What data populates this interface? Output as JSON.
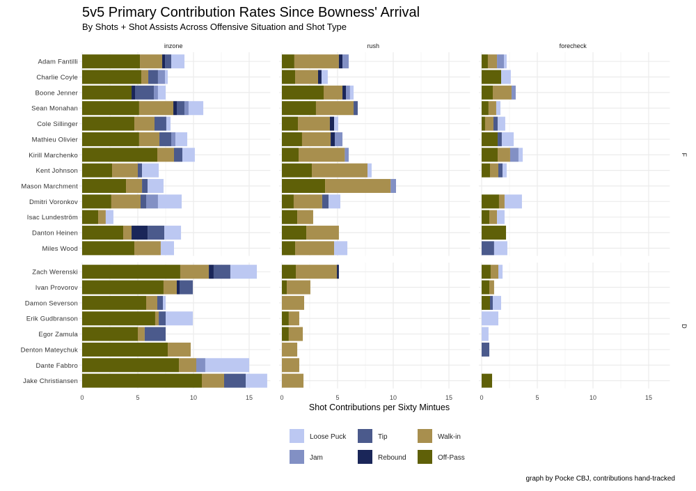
{
  "chart_data": {
    "type": "bar",
    "orientation": "horizontal",
    "stacked": true,
    "title": "5v5 Primary Contribution Rates Since Bowness' Arrival",
    "subtitle": "By Shots + Shot Assists Across Offensive Situation and Shot Type",
    "xlabel": "Shot Contributions per Sixty Mintues",
    "caption": "graph by Pocke CBJ, contributions hand-tracked",
    "xlim": [
      0,
      16.9
    ],
    "x_ticks": [
      "0",
      "5",
      "10",
      "15"
    ],
    "x_tick_values": [
      0,
      5,
      10,
      15
    ],
    "grid": true,
    "legend_position": "bottom",
    "panels": [
      "inzone",
      "rush",
      "forecheck"
    ],
    "segment_order": [
      "Off-Pass",
      "Walk-in",
      "Rebound",
      "Tip",
      "Jam",
      "Loose Puck"
    ],
    "colors": {
      "Off-Pass": "#5f6008",
      "Walk-in": "#a88f4e",
      "Rebound": "#1a2659",
      "Tip": "#4b5a8c",
      "Jam": "#8290c4",
      "Loose Puck": "#bcc8f2"
    },
    "legend": [
      "Loose Puck",
      "Jam",
      "Tip",
      "Rebound",
      "Walk-in",
      "Off-Pass"
    ],
    "row_facets": [
      {
        "label": "F",
        "players": [
          {
            "name": "Adam Fantilli",
            "inzone": [
              5.19,
              2.0,
              0.25,
              0.56,
              0,
              1.19
            ],
            "rush": [
              1.12,
              4.0,
              0.32,
              0,
              0.56,
              0
            ],
            "forecheck": [
              0.56,
              0.82,
              0,
              0,
              0.62,
              0.25
            ]
          },
          {
            "name": "Charlie Coyle",
            "inzone": [
              5.31,
              0.63,
              0,
              0.87,
              0.63,
              0.25
            ],
            "rush": [
              1.19,
              2.06,
              0.31,
              0,
              0,
              0.56
            ],
            "forecheck": [
              1.75,
              0,
              0,
              0,
              0,
              0.87
            ]
          },
          {
            "name": "Boone Jenner",
            "inzone": [
              4.44,
              0,
              0.31,
              1.69,
              0.37,
              0.69
            ],
            "rush": [
              3.75,
              1.69,
              0.31,
              0,
              0.37,
              0.32
            ],
            "forecheck": [
              1.0,
              1.69,
              0,
              0,
              0.37,
              0
            ]
          },
          {
            "name": "Sean Monahan",
            "inzone": [
              5.12,
              3.07,
              0.31,
              0.69,
              0.37,
              1.32
            ],
            "rush": [
              3.06,
              3.38,
              0,
              0.37,
              0,
              0
            ],
            "forecheck": [
              0.62,
              0.69,
              0,
              0,
              0,
              0.38
            ]
          },
          {
            "name": "Cole Sillinger",
            "inzone": [
              4.69,
              1.81,
              0,
              1.06,
              0,
              0.38
            ],
            "rush": [
              1.44,
              2.87,
              0.38,
              0,
              0,
              0.37
            ],
            "forecheck": [
              0.31,
              0.75,
              0,
              0.38,
              0,
              0.68
            ]
          },
          {
            "name": "Mathieu Olivier",
            "inzone": [
              5.12,
              1.82,
              0,
              1.06,
              0.38,
              1.06
            ],
            "rush": [
              1.81,
              2.57,
              0.37,
              0,
              0.69,
              0
            ],
            "forecheck": [
              1.44,
              0,
              0,
              0.37,
              0,
              1.07
            ]
          },
          {
            "name": "Kirill Marchenko",
            "inzone": [
              6.75,
              1.5,
              0,
              0.75,
              0,
              1.12
            ],
            "rush": [
              1.5,
              4.15,
              0,
              0,
              0.35,
              0
            ],
            "forecheck": [
              1.44,
              1.12,
              0,
              0,
              0.75,
              0.38
            ]
          },
          {
            "name": "Kent Johnson",
            "inzone": [
              2.69,
              2.31,
              0,
              0.38,
              0,
              1.5
            ],
            "rush": [
              2.69,
              5.0,
              0,
              0,
              0,
              0.37
            ],
            "forecheck": [
              0.75,
              0.75,
              0,
              0.38,
              0,
              0.37
            ]
          },
          {
            "name": "Mason Marchment",
            "inzone": [
              3.94,
              1.44,
              0,
              0.5,
              0,
              1.43
            ],
            "rush": [
              3.88,
              5.89,
              0,
              0,
              0.48,
              0
            ],
            "forecheck": [
              0,
              0,
              0,
              0,
              0,
              0
            ]
          },
          {
            "name": "Dmitri Voronkov",
            "inzone": [
              2.62,
              2.63,
              0,
              0.5,
              1.06,
              2.13
            ],
            "rush": [
              1.06,
              2.56,
              0,
              0.57,
              0,
              1.06
            ],
            "forecheck": [
              1.56,
              0.5,
              0,
              0,
              0,
              1.56
            ]
          },
          {
            "name": "Isac Lundeström",
            "inzone": [
              1.44,
              0.68,
              0,
              0,
              0,
              0.69
            ],
            "rush": [
              1.38,
              1.43,
              0,
              0,
              0,
              0
            ],
            "forecheck": [
              0.69,
              0.69,
              0,
              0,
              0,
              0.68
            ]
          },
          {
            "name": "Danton Heinen",
            "inzone": [
              3.69,
              0.75,
              1.44,
              1.5,
              0,
              1.5
            ],
            "rush": [
              2.19,
              2.93,
              0,
              0,
              0,
              0
            ],
            "forecheck": [
              2.19,
              0,
              0,
              0,
              0,
              0
            ]
          },
          {
            "name": "Miles Wood",
            "inzone": [
              4.69,
              2.37,
              0,
              0,
              0,
              1.19
            ],
            "rush": [
              1.19,
              3.5,
              0,
              0,
              0,
              1.19
            ],
            "forecheck": [
              0,
              0,
              0,
              1.12,
              0,
              1.19
            ]
          }
        ]
      },
      {
        "label": "D",
        "players": [
          {
            "name": "Zach Werenski",
            "inzone": [
              8.81,
              2.57,
              0.43,
              1.5,
              0,
              2.38
            ],
            "rush": [
              1.25,
              3.69,
              0.18,
              0,
              0,
              0
            ],
            "forecheck": [
              0.81,
              0.69,
              0,
              0,
              0,
              0.38
            ]
          },
          {
            "name": "Ivan Provorov",
            "inzone": [
              7.31,
              1.19,
              0.25,
              1.19,
              0,
              0
            ],
            "rush": [
              0.44,
              2.12,
              0,
              0,
              0,
              0
            ],
            "forecheck": [
              0.69,
              0.43,
              0,
              0,
              0,
              0
            ]
          },
          {
            "name": "Damon Severson",
            "inzone": [
              5.75,
              1.0,
              0,
              0.5,
              0,
              0.25
            ],
            "rush": [
              0,
              2.0,
              0,
              0,
              0,
              0
            ],
            "forecheck": [
              0.75,
              0,
              0,
              0.25,
              0,
              0.75
            ]
          },
          {
            "name": "Erik Gudbranson",
            "inzone": [
              6.56,
              0.32,
              0,
              0.62,
              0,
              2.44
            ],
            "rush": [
              0.62,
              0.94,
              0,
              0,
              0,
              0
            ],
            "forecheck": [
              0,
              0,
              0,
              0,
              0,
              1.5
            ]
          },
          {
            "name": "Egor Zamula",
            "inzone": [
              5.0,
              0.62,
              0,
              1.88,
              0,
              0
            ],
            "rush": [
              0.62,
              1.26,
              0,
              0,
              0,
              0
            ],
            "forecheck": [
              0,
              0,
              0,
              0,
              0,
              0.62
            ]
          },
          {
            "name": "Denton Mateychuk",
            "inzone": [
              7.69,
              2.06,
              0,
              0,
              0,
              0
            ],
            "rush": [
              0,
              1.38,
              0,
              0,
              0,
              0
            ],
            "forecheck": [
              0,
              0,
              0,
              0.69,
              0,
              0
            ]
          },
          {
            "name": "Dante Fabbro",
            "inzone": [
              8.69,
              1.56,
              0,
              0,
              0.81,
              3.94
            ],
            "rush": [
              0,
              1.56,
              0,
              0,
              0,
              0
            ],
            "forecheck": [
              0,
              0,
              0,
              0,
              0,
              0
            ]
          },
          {
            "name": "Jake Christiansen",
            "inzone": [
              10.75,
              2.0,
              0,
              1.94,
              0,
              1.93
            ],
            "rush": [
              0,
              1.94,
              0,
              0,
              0,
              0
            ],
            "forecheck": [
              0.94,
              0,
              0,
              0,
              0,
              0
            ]
          }
        ]
      }
    ]
  }
}
